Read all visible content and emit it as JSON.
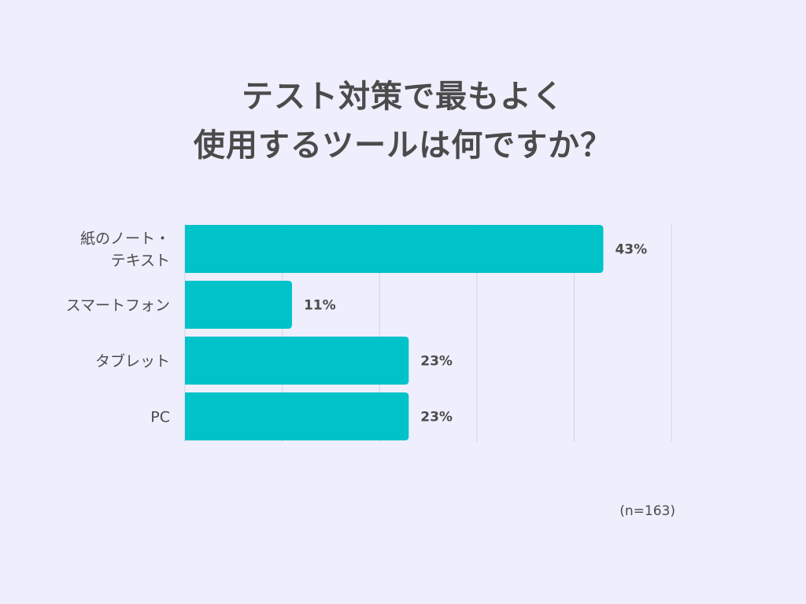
{
  "chart_data": {
    "type": "bar",
    "orientation": "horizontal",
    "title_lines": [
      "テスト対策で最もよく",
      "使用するツールは何ですか？"
    ],
    "categories": [
      [
        "紙のノート・",
        "テキスト"
      ],
      [
        "スマートフォン"
      ],
      [
        "タブレット"
      ],
      [
        "PC"
      ]
    ],
    "values": [
      43,
      11,
      23,
      23
    ],
    "value_labels": [
      "43%",
      "11%",
      "23%",
      "23%"
    ],
    "xlim": [
      0,
      50
    ],
    "grid": true,
    "bar_color": "#00C2C9",
    "note": "(n=163)"
  }
}
